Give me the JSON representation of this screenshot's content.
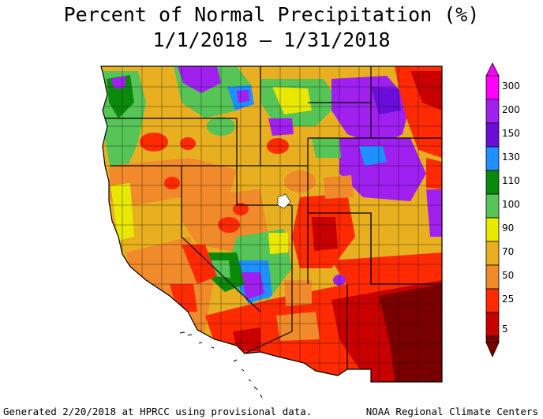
{
  "map": {
    "title": "Percent of Normal Precipitation (%)",
    "date_range": "1/1/2018 – 1/31/2018",
    "footer_left": "Generated 2/20/2018 at HPRCC using provisional data.",
    "footer_right": "NOAA Regional Climate Centers",
    "legend": {
      "labels": [
        "300",
        "200",
        "150",
        "130",
        "110",
        "100",
        "90",
        "70",
        "50",
        "25",
        "5"
      ],
      "colors": [
        "#ff00ff",
        "#a020f0",
        "#6a0dd8",
        "#1e90ff",
        "#0a8a0a",
        "#56c456",
        "#e8e800",
        "#e8b020",
        "#f08a2a",
        "#ff2a00",
        "#c80000",
        "#7a0000"
      ]
    },
    "palette": {
      "purple": "#8a1ee8",
      "blue": "#1e90ff",
      "dark_green": "#0a8a0a",
      "green": "#56c456",
      "yellow": "#e8e800",
      "tan": "#e8b020",
      "orange": "#f08a2a",
      "red": "#ff2a00",
      "dark_red": "#c80000",
      "maroon": "#7a0000"
    }
  }
}
